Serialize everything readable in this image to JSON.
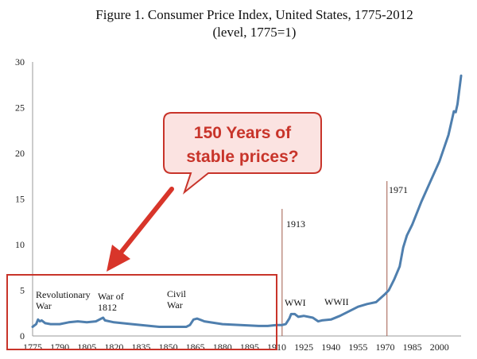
{
  "chart_data": {
    "type": "line",
    "title": "Figure 1. Consumer Price Index, United States, 1775-2012",
    "subtitle": "(level, 1775=1)",
    "xlabel": "",
    "ylabel": "",
    "xlim": [
      1775,
      2012
    ],
    "ylim": [
      0,
      30
    ],
    "x_ticks": [
      1775,
      1790,
      1805,
      1820,
      1835,
      1850,
      1865,
      1880,
      1895,
      1910,
      1925,
      1940,
      1955,
      1970,
      1985,
      2000
    ],
    "y_ticks": [
      0,
      5,
      10,
      15,
      20,
      25,
      30
    ],
    "grid": false,
    "series": [
      {
        "name": "CPI",
        "color": "#4f7fae",
        "x": [
          1775,
          1777,
          1778,
          1779,
          1780,
          1782,
          1785,
          1790,
          1795,
          1800,
          1805,
          1810,
          1814,
          1815,
          1820,
          1830,
          1840,
          1845,
          1850,
          1860,
          1862,
          1864,
          1866,
          1870,
          1880,
          1890,
          1900,
          1905,
          1910,
          1913,
          1915,
          1917,
          1918,
          1920,
          1922,
          1925,
          1930,
          1933,
          1935,
          1940,
          1945,
          1950,
          1955,
          1960,
          1965,
          1970,
          1972,
          1975,
          1978,
          1980,
          1982,
          1985,
          1990,
          1995,
          2000,
          2005,
          2008,
          2009,
          2010,
          2012
        ],
        "y": [
          1.0,
          1.3,
          1.8,
          1.6,
          1.7,
          1.4,
          1.3,
          1.3,
          1.5,
          1.6,
          1.5,
          1.6,
          2.0,
          1.7,
          1.5,
          1.3,
          1.1,
          1.0,
          1.0,
          1.0,
          1.2,
          1.8,
          1.9,
          1.6,
          1.3,
          1.2,
          1.1,
          1.1,
          1.2,
          1.2,
          1.3,
          1.9,
          2.4,
          2.4,
          2.1,
          2.2,
          2.0,
          1.6,
          1.7,
          1.8,
          2.2,
          2.7,
          3.2,
          3.5,
          3.7,
          4.6,
          5.0,
          6.2,
          7.6,
          9.7,
          11.0,
          12.2,
          14.7,
          16.9,
          19.1,
          22.0,
          24.6,
          24.5,
          25.4,
          28.5
        ]
      }
    ],
    "annotations": {
      "callout_line1": "150 Years of",
      "callout_line2": "stable prices?",
      "revolutionary_line1": "Revolutionary",
      "revolutionary_line2": "War",
      "war1812_line1": "War of",
      "war1812_line2": "1812",
      "civil_line1": "Civil",
      "civil_line2": "War",
      "wwi": "WWI",
      "wwii": "WWII",
      "year_1913": "1913",
      "year_1971": "1971"
    },
    "vlines": [
      1913,
      1971
    ],
    "colors": {
      "line": "#4f7fae",
      "highlight_box": "#c8342a",
      "callout_fill": "#fbe3e1",
      "arrow": "#d8352a",
      "vline": "#a05a4a"
    }
  }
}
